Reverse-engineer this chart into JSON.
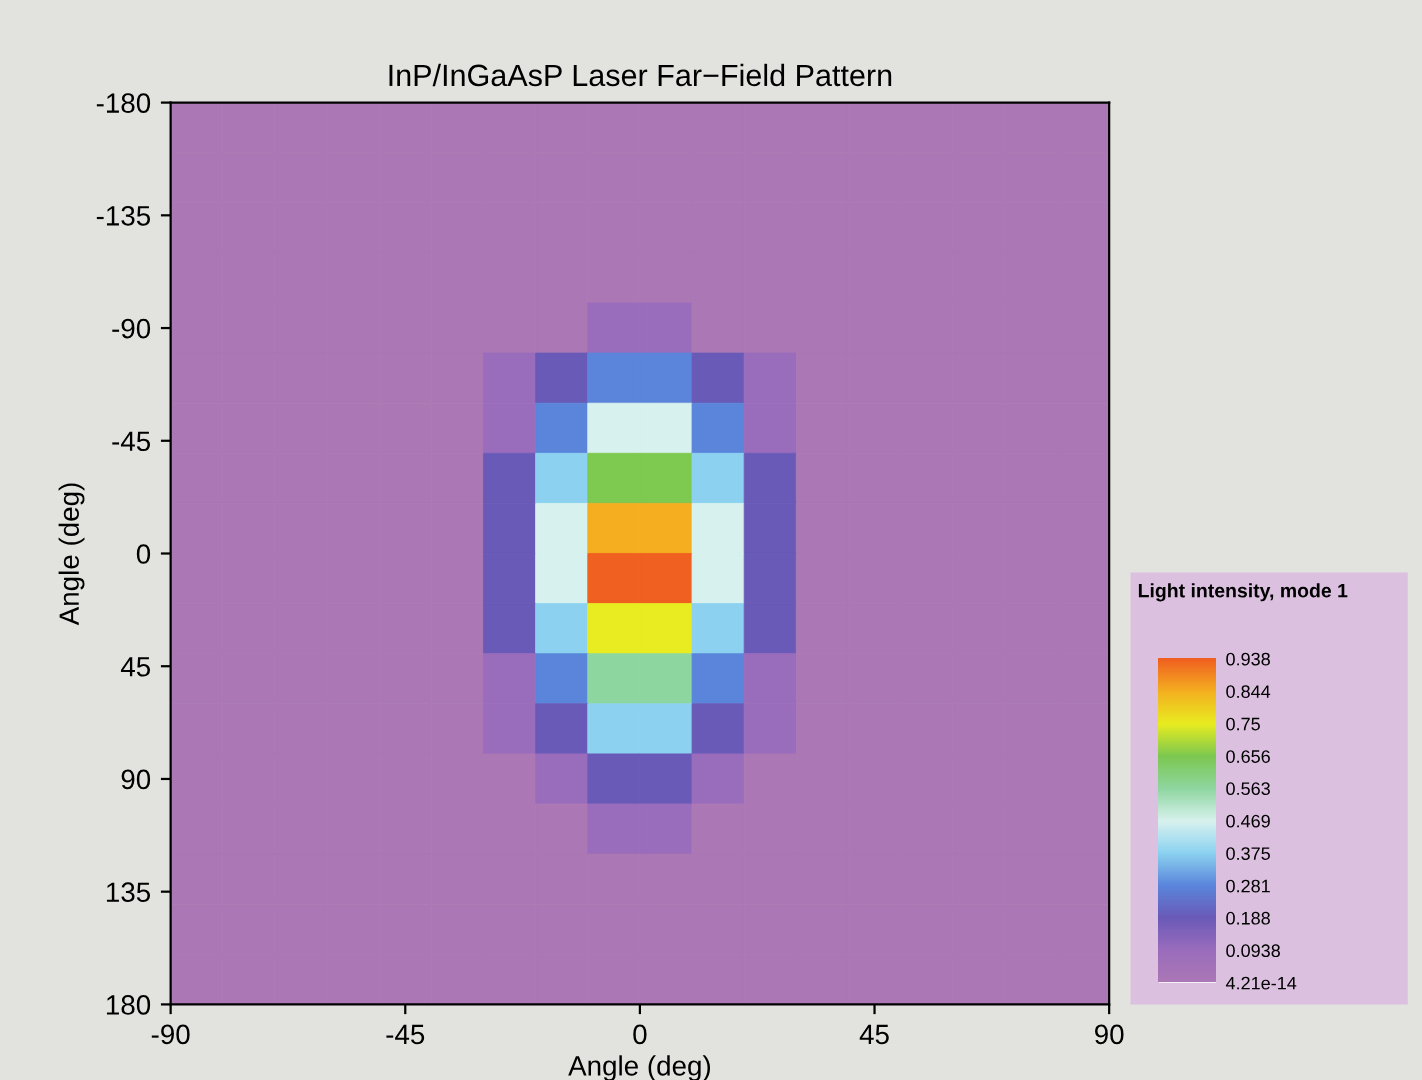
{
  "chart_data": {
    "type": "heatmap",
    "title": "InP/InGaAsP Laser Far−Field Pattern",
    "xlabel": "Angle (deg)",
    "ylabel": "Angle (deg)",
    "clabel": "Light intensity, mode 1",
    "xlim": [
      -90,
      90
    ],
    "ylim": [
      180,
      -180
    ],
    "xticks": [
      -90,
      -45,
      0,
      45,
      90
    ],
    "yticks": [
      -180,
      -135,
      -90,
      -45,
      0,
      45,
      90,
      135,
      180
    ],
    "clim": [
      4.21e-14,
      0.938
    ],
    "cticks": [
      {
        "value": 4.21e-14,
        "label": "4.21e-14"
      },
      0.0938,
      0.188,
      0.281,
      0.375,
      0.469,
      0.563,
      0.656,
      0.75,
      0.844,
      0.938
    ],
    "colors": [
      "#ab78b5",
      "#9a6cbc",
      "#6a5ab8",
      "#5a86dc",
      "#8cd2f0",
      "#d8f2ee",
      "#8ed6a0",
      "#7cc850",
      "#e8ec20",
      "#f4b020",
      "#f06020"
    ],
    "cells": [
      [
        4.21e-14,
        4.21e-14,
        4.21e-14,
        4.21e-14,
        4.21e-14,
        4.21e-14,
        4.21e-14,
        4.21e-14,
        4.21e-14,
        4.21e-14,
        4.21e-14,
        4.21e-14,
        4.21e-14,
        4.21e-14,
        4.21e-14,
        4.21e-14,
        4.21e-14,
        4.21e-14
      ],
      [
        4.21e-14,
        4.21e-14,
        4.21e-14,
        4.21e-14,
        4.21e-14,
        4.21e-14,
        4.21e-14,
        4.21e-14,
        4.21e-14,
        4.21e-14,
        4.21e-14,
        4.21e-14,
        4.21e-14,
        4.21e-14,
        4.21e-14,
        4.21e-14,
        4.21e-14,
        4.21e-14
      ],
      [
        4.21e-14,
        4.21e-14,
        4.21e-14,
        4.21e-14,
        4.21e-14,
        4.21e-14,
        4.21e-14,
        4.21e-14,
        4.21e-14,
        4.21e-14,
        4.21e-14,
        4.21e-14,
        4.21e-14,
        4.21e-14,
        4.21e-14,
        4.21e-14,
        4.21e-14,
        4.21e-14
      ],
      [
        4.21e-14,
        4.21e-14,
        4.21e-14,
        4.21e-14,
        4.21e-14,
        4.21e-14,
        4.21e-14,
        4.21e-14,
        4.21e-14,
        4.21e-14,
        4.21e-14,
        4.21e-14,
        4.21e-14,
        4.21e-14,
        4.21e-14,
        4.21e-14,
        4.21e-14,
        4.21e-14
      ],
      [
        4.21e-14,
        4.21e-14,
        4.21e-14,
        4.21e-14,
        4.21e-14,
        4.21e-14,
        4.21e-14,
        4.21e-14,
        0.0938,
        0.0938,
        4.21e-14,
        4.21e-14,
        4.21e-14,
        4.21e-14,
        4.21e-14,
        4.21e-14,
        4.21e-14,
        4.21e-14
      ],
      [
        4.21e-14,
        4.21e-14,
        4.21e-14,
        4.21e-14,
        4.21e-14,
        4.21e-14,
        0.0938,
        0.188,
        0.281,
        0.281,
        0.188,
        0.0938,
        4.21e-14,
        4.21e-14,
        4.21e-14,
        4.21e-14,
        4.21e-14,
        4.21e-14
      ],
      [
        4.21e-14,
        4.21e-14,
        4.21e-14,
        4.21e-14,
        4.21e-14,
        4.21e-14,
        0.0938,
        0.281,
        0.469,
        0.469,
        0.281,
        0.0938,
        4.21e-14,
        4.21e-14,
        4.21e-14,
        4.21e-14,
        4.21e-14,
        4.21e-14
      ],
      [
        4.21e-14,
        4.21e-14,
        4.21e-14,
        4.21e-14,
        4.21e-14,
        4.21e-14,
        0.188,
        0.375,
        0.656,
        0.656,
        0.375,
        0.188,
        4.21e-14,
        4.21e-14,
        4.21e-14,
        4.21e-14,
        4.21e-14,
        4.21e-14
      ],
      [
        4.21e-14,
        4.21e-14,
        4.21e-14,
        4.21e-14,
        4.21e-14,
        4.21e-14,
        0.188,
        0.469,
        0.844,
        0.844,
        0.469,
        0.188,
        4.21e-14,
        4.21e-14,
        4.21e-14,
        4.21e-14,
        4.21e-14,
        4.21e-14
      ],
      [
        4.21e-14,
        4.21e-14,
        4.21e-14,
        4.21e-14,
        4.21e-14,
        4.21e-14,
        0.188,
        0.469,
        0.938,
        0.938,
        0.469,
        0.188,
        4.21e-14,
        4.21e-14,
        4.21e-14,
        4.21e-14,
        4.21e-14,
        4.21e-14
      ],
      [
        4.21e-14,
        4.21e-14,
        4.21e-14,
        4.21e-14,
        4.21e-14,
        4.21e-14,
        0.188,
        0.375,
        0.75,
        0.75,
        0.375,
        0.188,
        4.21e-14,
        4.21e-14,
        4.21e-14,
        4.21e-14,
        4.21e-14,
        4.21e-14
      ],
      [
        4.21e-14,
        4.21e-14,
        4.21e-14,
        4.21e-14,
        4.21e-14,
        4.21e-14,
        0.0938,
        0.281,
        0.563,
        0.563,
        0.281,
        0.0938,
        4.21e-14,
        4.21e-14,
        4.21e-14,
        4.21e-14,
        4.21e-14,
        4.21e-14
      ],
      [
        4.21e-14,
        4.21e-14,
        4.21e-14,
        4.21e-14,
        4.21e-14,
        4.21e-14,
        0.0938,
        0.188,
        0.375,
        0.375,
        0.188,
        0.0938,
        4.21e-14,
        4.21e-14,
        4.21e-14,
        4.21e-14,
        4.21e-14,
        4.21e-14
      ],
      [
        4.21e-14,
        4.21e-14,
        4.21e-14,
        4.21e-14,
        4.21e-14,
        4.21e-14,
        4.21e-14,
        0.0938,
        0.188,
        0.188,
        0.0938,
        4.21e-14,
        4.21e-14,
        4.21e-14,
        4.21e-14,
        4.21e-14,
        4.21e-14,
        4.21e-14
      ],
      [
        4.21e-14,
        4.21e-14,
        4.21e-14,
        4.21e-14,
        4.21e-14,
        4.21e-14,
        4.21e-14,
        4.21e-14,
        0.0938,
        0.0938,
        4.21e-14,
        4.21e-14,
        4.21e-14,
        4.21e-14,
        4.21e-14,
        4.21e-14,
        4.21e-14,
        4.21e-14
      ],
      [
        4.21e-14,
        4.21e-14,
        4.21e-14,
        4.21e-14,
        4.21e-14,
        4.21e-14,
        4.21e-14,
        4.21e-14,
        4.21e-14,
        4.21e-14,
        4.21e-14,
        4.21e-14,
        4.21e-14,
        4.21e-14,
        4.21e-14,
        4.21e-14,
        4.21e-14,
        4.21e-14
      ],
      [
        4.21e-14,
        4.21e-14,
        4.21e-14,
        4.21e-14,
        4.21e-14,
        4.21e-14,
        4.21e-14,
        4.21e-14,
        4.21e-14,
        4.21e-14,
        4.21e-14,
        4.21e-14,
        4.21e-14,
        4.21e-14,
        4.21e-14,
        4.21e-14,
        4.21e-14,
        4.21e-14
      ],
      [
        4.21e-14,
        4.21e-14,
        4.21e-14,
        4.21e-14,
        4.21e-14,
        4.21e-14,
        4.21e-14,
        4.21e-14,
        4.21e-14,
        4.21e-14,
        4.21e-14,
        4.21e-14,
        4.21e-14,
        4.21e-14,
        4.21e-14,
        4.21e-14,
        4.21e-14,
        4.21e-14
      ]
    ]
  }
}
